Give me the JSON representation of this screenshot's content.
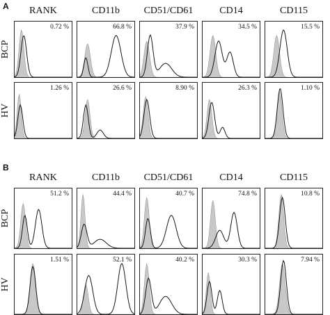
{
  "panels": [
    {
      "letter": "A",
      "columns": [
        "RANK",
        "CD11b",
        "CD51/CD61",
        "CD14",
        "CD115"
      ],
      "rows": [
        {
          "label": "BCP",
          "values": [
            "0.72 %",
            "66.8 %",
            "37.9 %",
            "34.5 %",
            "15.5 %"
          ]
        },
        {
          "label": "HV",
          "values": [
            "1.26 %",
            "26.6 %",
            "8.90 %",
            "26.3 %",
            "1.10 %"
          ]
        }
      ]
    },
    {
      "letter": "B",
      "columns": [
        "RANK",
        "CD11b",
        "CD51/CD61",
        "CD14",
        "CD115"
      ],
      "rows": [
        {
          "label": "BCP",
          "values": [
            "51.2 %",
            "44.4 %",
            "40.7 %",
            "74.8 %",
            "10.8 %"
          ]
        },
        {
          "label": "HV",
          "values": [
            "1.51 %",
            "52.1 %",
            "40.2 %",
            "30.3 %",
            "7.94 %"
          ]
        }
      ]
    }
  ],
  "colors": {
    "isotype_fill": "#c8c8c8",
    "stain_line": "#111111"
  }
}
